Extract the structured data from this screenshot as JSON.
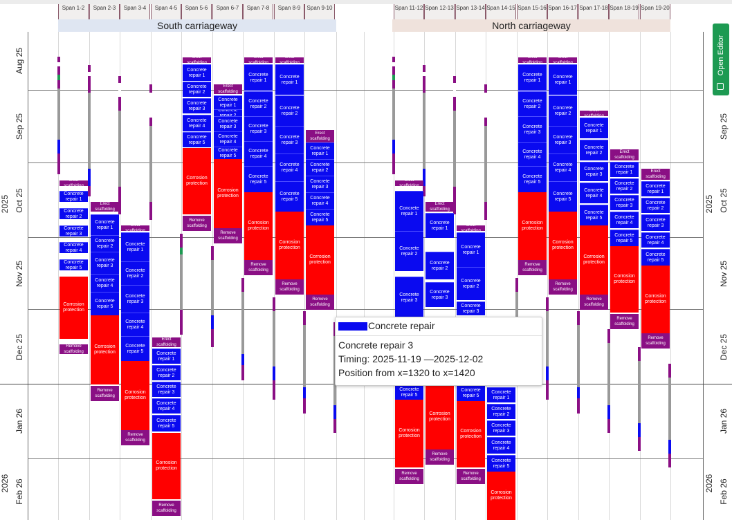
{
  "spans": [
    "Span 1-2",
    "Span 2-3",
    "Span 3-4",
    "Span 4-5",
    "Span 5-6",
    "Span 6-7",
    "Span 7-8",
    "Span 8-9",
    "Span 9-10",
    "Span 11-12",
    "Span 12-13",
    "Span 13-14",
    "Span 14-15",
    "Span 15-16",
    "Span 16-17",
    "Span 17-18",
    "Span 18-19",
    "Span 19-20"
  ],
  "carriageways": {
    "south": "South carriageway",
    "north": "North carriageway"
  },
  "months": [
    "Aug 25",
    "Sep 25",
    "Oct 25",
    "Nov 25",
    "Dec 25",
    "Jan 26",
    "Feb 26"
  ],
  "years": [
    "2025",
    "2026"
  ],
  "activity_labels": {
    "erect": "Erect scaffolding",
    "erect_short": "erect scaffolding",
    "cr1": "Concrete repair 1",
    "cr2": "Concrete repair 2",
    "cr3": "Concrete repair 3",
    "cr4": "Concrete repair 4",
    "cr5": "Concrete repair 5",
    "corrosion": "Corrosion protection",
    "remove": "Remove scaffolding"
  },
  "tooltip": {
    "series": "Concrete repair",
    "title": "Concrete repair 3",
    "timing": "Timing: 2025-11-19 —2025-12-02",
    "position": "Position from x=1320 to x=1420"
  },
  "open_editor": "Open Editor",
  "colors": {
    "concrete": "#0a0af0",
    "corrosion": "#ff0000",
    "scaffolding": "#8a0f84",
    "accent": "#1d9a52"
  }
}
